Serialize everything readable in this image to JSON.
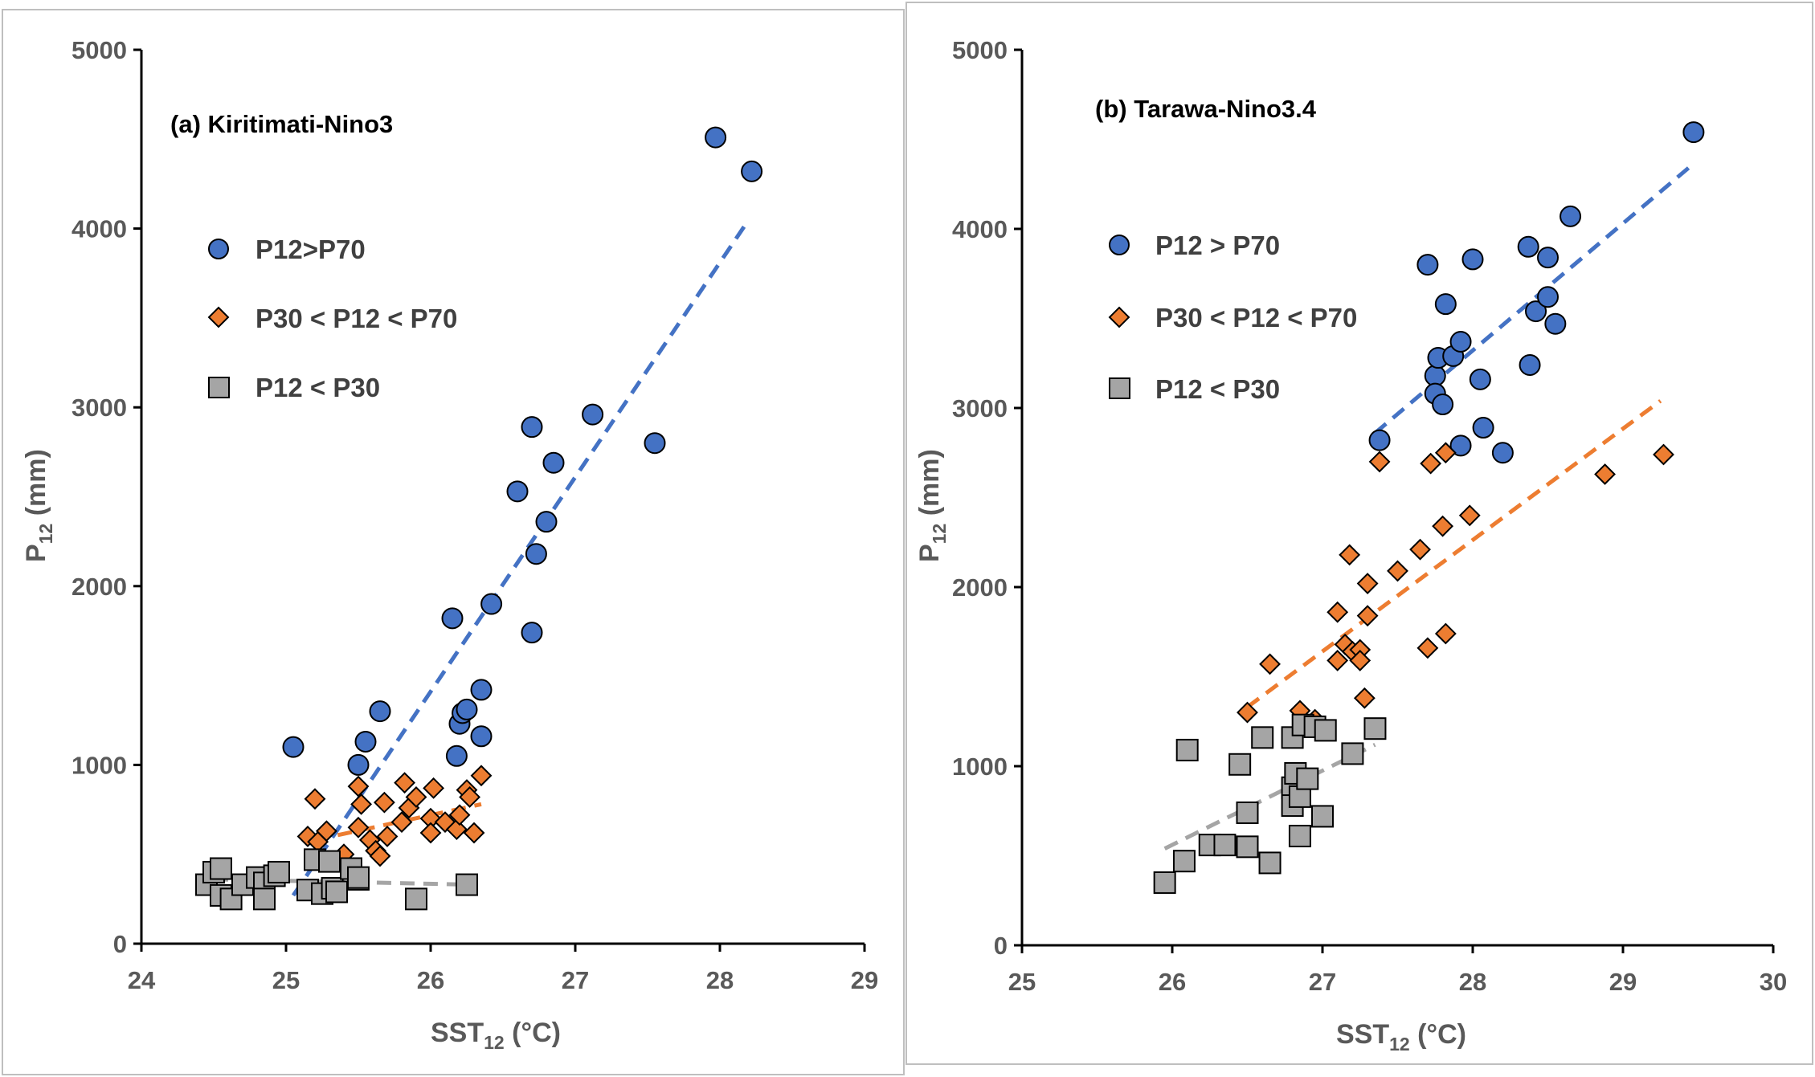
{
  "colors": {
    "blue_fill": "#4472C4",
    "orange_fill": "#ED7D31",
    "gray_fill": "#A5A5A5",
    "marker_stroke": "#000000",
    "blue_line": "#4472C4",
    "orange_line": "#ED7D31",
    "gray_line": "#A5A5A5"
  },
  "chart_data": [
    {
      "type": "scatter",
      "title": "(a) Kiritimati-Nino3",
      "xlabel_main": "SST",
      "xlabel_sub": "12",
      "xlabel_tail": " (°C)",
      "ylabel_main": "P",
      "ylabel_sub": "12",
      "ylabel_tail": " (mm)",
      "xlim": [
        24,
        29
      ],
      "ylim": [
        0,
        5000
      ],
      "xticks": [
        "24",
        "25",
        "26",
        "27",
        "28",
        "29"
      ],
      "yticks": [
        "0",
        "1000",
        "2000",
        "3000",
        "4000",
        "5000"
      ],
      "legend_position": "upper-left",
      "series": [
        {
          "name": "P12>P70",
          "marker": "circle",
          "color_key": "blue_fill",
          "points": [
            [
              25.05,
              1100
            ],
            [
              25.5,
              1000
            ],
            [
              25.55,
              1130
            ],
            [
              25.65,
              1300
            ],
            [
              26.15,
              1820
            ],
            [
              26.18,
              1050
            ],
            [
              26.2,
              1230
            ],
            [
              26.22,
              1290
            ],
            [
              26.25,
              1310
            ],
            [
              26.35,
              1160
            ],
            [
              26.35,
              1420
            ],
            [
              26.42,
              1900
            ],
            [
              26.6,
              2530
            ],
            [
              26.7,
              1740
            ],
            [
              26.7,
              2890
            ],
            [
              26.73,
              2180
            ],
            [
              26.8,
              2360
            ],
            [
              26.85,
              2690
            ],
            [
              27.12,
              2960
            ],
            [
              27.55,
              2800
            ],
            [
              27.97,
              4510
            ],
            [
              28.22,
              4320
            ]
          ],
          "trend": [
            [
              25.05,
              270
            ],
            [
              28.2,
              4050
            ]
          ]
        },
        {
          "name": "P30 < P12 < P70",
          "marker": "diamond",
          "color_key": "orange_fill",
          "points": [
            [
              25.15,
              600
            ],
            [
              25.2,
              810
            ],
            [
              25.22,
              570
            ],
            [
              25.28,
              630
            ],
            [
              25.4,
              500
            ],
            [
              25.5,
              650
            ],
            [
              25.5,
              880
            ],
            [
              25.52,
              780
            ],
            [
              25.58,
              580
            ],
            [
              25.62,
              520
            ],
            [
              25.65,
              490
            ],
            [
              25.68,
              790
            ],
            [
              25.7,
              600
            ],
            [
              25.8,
              680
            ],
            [
              25.82,
              900
            ],
            [
              25.85,
              760
            ],
            [
              25.9,
              820
            ],
            [
              26.0,
              700
            ],
            [
              26.0,
              620
            ],
            [
              26.02,
              870
            ],
            [
              26.1,
              680
            ],
            [
              26.18,
              640
            ],
            [
              26.2,
              720
            ],
            [
              26.25,
              860
            ],
            [
              26.27,
              820
            ],
            [
              26.3,
              620
            ],
            [
              26.35,
              940
            ]
          ],
          "trend": [
            [
              25.2,
              580
            ],
            [
              26.35,
              780
            ]
          ]
        },
        {
          "name": "P12 < P30",
          "marker": "square",
          "color_key": "gray_fill",
          "points": [
            [
              24.45,
              330
            ],
            [
              24.5,
              400
            ],
            [
              24.55,
              420
            ],
            [
              24.55,
              270
            ],
            [
              24.62,
              250
            ],
            [
              24.7,
              330
            ],
            [
              24.8,
              370
            ],
            [
              24.85,
              340
            ],
            [
              24.85,
              250
            ],
            [
              24.92,
              380
            ],
            [
              24.95,
              400
            ],
            [
              25.15,
              300
            ],
            [
              25.2,
              470
            ],
            [
              25.25,
              280
            ],
            [
              25.3,
              460
            ],
            [
              25.32,
              310
            ],
            [
              25.35,
              290
            ],
            [
              25.45,
              420
            ],
            [
              25.5,
              360
            ],
            [
              25.5,
              370
            ],
            [
              25.9,
              250
            ],
            [
              26.25,
              330
            ]
          ],
          "trend": [
            [
              24.5,
              360
            ],
            [
              26.3,
              330
            ]
          ]
        }
      ]
    },
    {
      "type": "scatter",
      "title": "(b) Tarawa-Nino3.4",
      "xlabel_main": "SST",
      "xlabel_sub": "12",
      "xlabel_tail": " (°C)",
      "ylabel_main": "P",
      "ylabel_sub": "12",
      "ylabel_tail": " (mm)",
      "xlim": [
        25,
        30
      ],
      "ylim": [
        0,
        5000
      ],
      "xticks": [
        "25",
        "26",
        "27",
        "28",
        "29",
        "30"
      ],
      "yticks": [
        "0",
        "1000",
        "2000",
        "3000",
        "4000",
        "5000"
      ],
      "legend_position": "upper-left",
      "series": [
        {
          "name": "P12 > P70",
          "marker": "circle",
          "color_key": "blue_fill",
          "points": [
            [
              27.38,
              2820
            ],
            [
              27.7,
              3800
            ],
            [
              27.75,
              3180
            ],
            [
              27.75,
              3080
            ],
            [
              27.77,
              3280
            ],
            [
              27.8,
              3020
            ],
            [
              27.82,
              3580
            ],
            [
              27.87,
              3290
            ],
            [
              27.92,
              3370
            ],
            [
              27.92,
              2790
            ],
            [
              28.0,
              3830
            ],
            [
              28.05,
              3160
            ],
            [
              28.07,
              2890
            ],
            [
              28.2,
              2750
            ],
            [
              28.37,
              3900
            ],
            [
              28.38,
              3240
            ],
            [
              28.42,
              3540
            ],
            [
              28.5,
              3840
            ],
            [
              28.5,
              3620
            ],
            [
              28.55,
              3470
            ],
            [
              28.65,
              4070
            ],
            [
              29.47,
              4540
            ]
          ],
          "trend": [
            [
              27.35,
              2860
            ],
            [
              29.45,
              4350
            ]
          ]
        },
        {
          "name": "P30 < P12 < P70",
          "marker": "diamond",
          "color_key": "orange_fill",
          "points": [
            [
              26.5,
              1300
            ],
            [
              26.65,
              1570
            ],
            [
              26.85,
              1310
            ],
            [
              26.95,
              1260
            ],
            [
              27.1,
              1860
            ],
            [
              27.1,
              1590
            ],
            [
              27.15,
              1680
            ],
            [
              27.18,
              2180
            ],
            [
              27.2,
              1640
            ],
            [
              27.25,
              1650
            ],
            [
              27.25,
              1590
            ],
            [
              27.28,
              1380
            ],
            [
              27.3,
              2020
            ],
            [
              27.3,
              1840
            ],
            [
              27.38,
              2700
            ],
            [
              27.5,
              2090
            ],
            [
              27.65,
              2210
            ],
            [
              27.7,
              1660
            ],
            [
              27.72,
              2690
            ],
            [
              27.8,
              2340
            ],
            [
              27.82,
              1740
            ],
            [
              27.82,
              2750
            ],
            [
              27.98,
              2400
            ],
            [
              28.88,
              2630
            ],
            [
              29.27,
              2740
            ]
          ],
          "trend": [
            [
              26.5,
              1330
            ],
            [
              29.25,
              3040
            ]
          ]
        },
        {
          "name": "P12 < P30",
          "marker": "square",
          "color_key": "gray_fill",
          "points": [
            [
              25.95,
              350
            ],
            [
              26.08,
              470
            ],
            [
              26.1,
              1090
            ],
            [
              26.25,
              560
            ],
            [
              26.35,
              560
            ],
            [
              26.45,
              1010
            ],
            [
              26.5,
              740
            ],
            [
              26.5,
              550
            ],
            [
              26.6,
              1160
            ],
            [
              26.65,
              460
            ],
            [
              26.8,
              880
            ],
            [
              26.8,
              1160
            ],
            [
              26.82,
              960
            ],
            [
              26.8,
              780
            ],
            [
              26.85,
              830
            ],
            [
              26.85,
              610
            ],
            [
              26.87,
              1230
            ],
            [
              26.9,
              930
            ],
            [
              26.95,
              1220
            ],
            [
              27.0,
              720
            ],
            [
              27.02,
              1200
            ],
            [
              27.2,
              1070
            ],
            [
              27.35,
              1210
            ]
          ],
          "trend": [
            [
              25.95,
              540
            ],
            [
              27.35,
              1120
            ]
          ]
        }
      ]
    }
  ]
}
